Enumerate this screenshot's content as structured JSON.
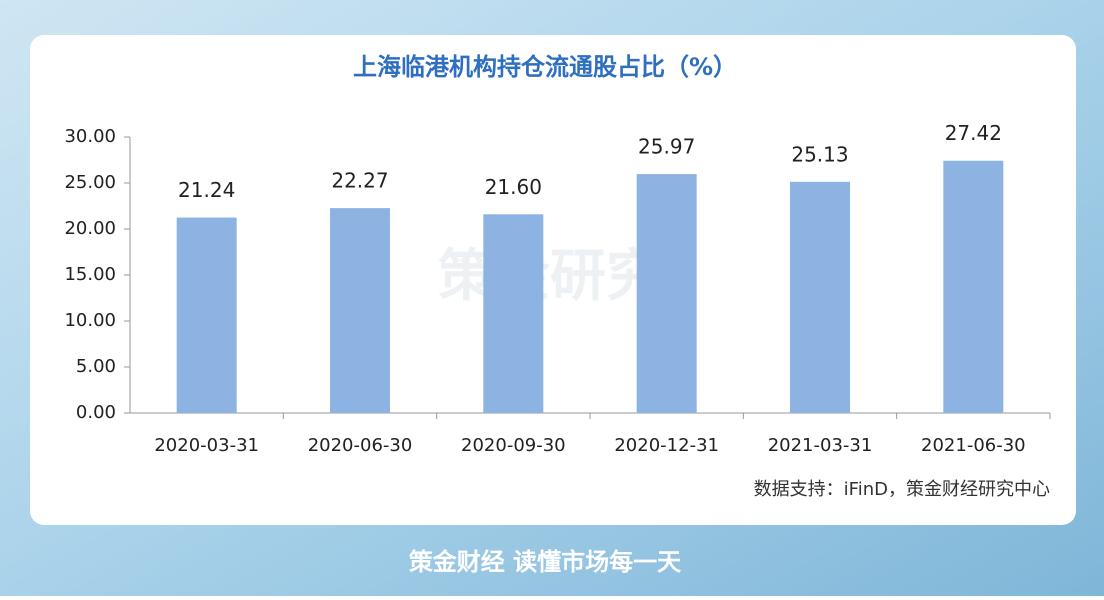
{
  "chart_data": {
    "type": "bar",
    "title": "上海临港机构持仓流通股占比（%）",
    "categories": [
      "2020-03-31",
      "2020-06-30",
      "2020-09-30",
      "2020-12-31",
      "2021-03-31",
      "2021-06-30"
    ],
    "values": [
      21.24,
      22.27,
      21.6,
      25.97,
      25.13,
      27.42
    ],
    "value_labels": [
      "21.24",
      "22.27",
      "21.60",
      "25.97",
      "25.13",
      "27.42"
    ],
    "color": "#8db3e2",
    "ylim": [
      0,
      30
    ],
    "yticks": [
      {
        "value": 0,
        "label": "0.00"
      },
      {
        "value": 5,
        "label": "5.00"
      },
      {
        "value": 10,
        "label": "10.00"
      },
      {
        "value": 15,
        "label": "15.00"
      },
      {
        "value": 20,
        "label": "20.00"
      },
      {
        "value": 25,
        "label": "25.00"
      },
      {
        "value": 30,
        "label": "30.00"
      }
    ],
    "grid": false,
    "source": "数据支持：iFinD，策金财经研究中心",
    "watermark": "策金研究",
    "footer": "策金财经  读懂市场每一天"
  }
}
